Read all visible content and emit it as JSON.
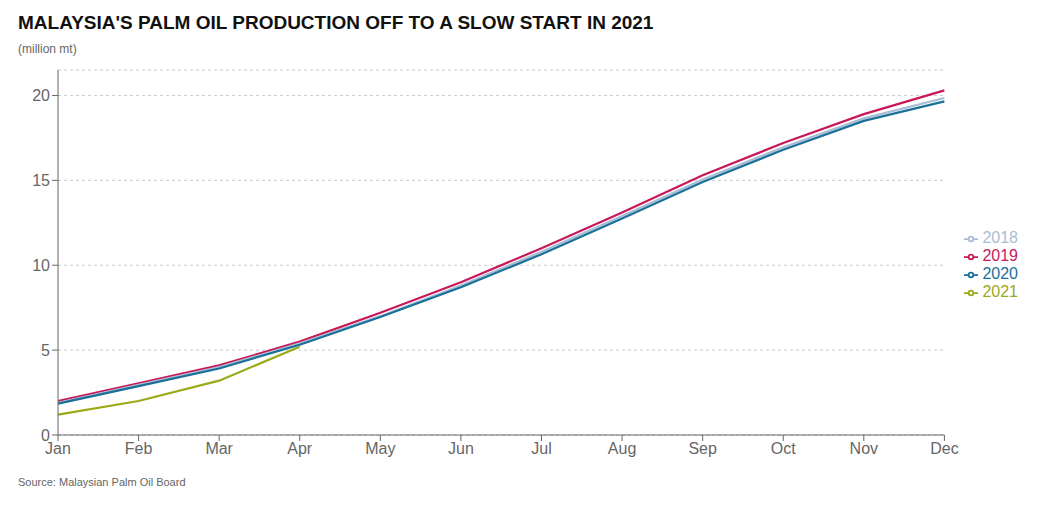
{
  "chart_data": {
    "type": "line",
    "title": "MALAYSIA'S PALM OIL PRODUCTION OFF TO A SLOW START IN 2021",
    "ylabel": "(million mt)",
    "annotations": [
      "Source: Malaysian Palm Oil Board"
    ],
    "categories": [
      "Jan",
      "Feb",
      "Mar",
      "Apr",
      "May",
      "Jun",
      "Jul",
      "Aug",
      "Sep",
      "Oct",
      "Nov",
      "Dec"
    ],
    "series": [
      {
        "name": "2019",
        "color": "#c8185a",
        "values": [
          2.0,
          3.05,
          4.1,
          5.5,
          7.2,
          9.0,
          11.0,
          13.1,
          15.3,
          17.2,
          18.9,
          20.3
        ]
      },
      {
        "name": "2018",
        "color": "#a8bdd4",
        "values": [
          1.9,
          2.95,
          4.0,
          5.4,
          7.0,
          8.8,
          10.8,
          12.9,
          15.05,
          16.95,
          18.65,
          19.85
        ]
      },
      {
        "name": "2020",
        "color": "#1a7098",
        "values": [
          1.85,
          2.88,
          3.92,
          5.32,
          6.95,
          8.7,
          10.65,
          12.75,
          14.9,
          16.8,
          18.5,
          19.65
        ]
      },
      {
        "name": "2021",
        "color": "#9aaa18",
        "values": [
          1.2,
          2.0,
          3.2,
          5.2,
          null,
          null,
          null,
          null,
          null,
          null,
          null,
          null
        ]
      }
    ],
    "ylim": [
      0,
      21.5
    ],
    "yticks": [
      0,
      5,
      10,
      15,
      20
    ],
    "grid": true,
    "legend": "right"
  }
}
